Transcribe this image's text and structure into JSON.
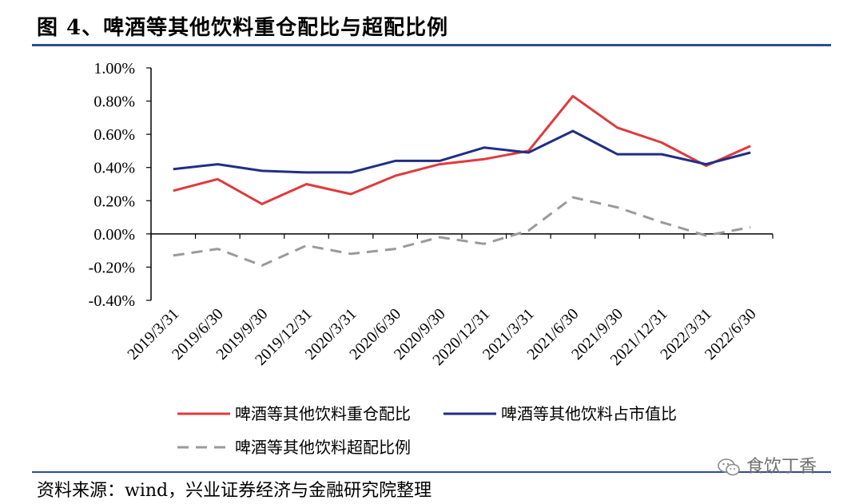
{
  "title": "图 4、啤酒等其他饮料重仓配比与超配比例",
  "source": "资料来源：wind，兴业证券经济与金融研究院整理",
  "watermark": {
    "text": "食饮丁香",
    "icon": "wechat-icon"
  },
  "colors": {
    "red": "#e03a3c",
    "blue": "#1f2f86",
    "gray": "#9a9a9a",
    "rule": "#2a4d8f"
  },
  "chart_data": {
    "type": "line",
    "categories": [
      "2019/3/31",
      "2019/6/30",
      "2019/9/30",
      "2019/12/31",
      "2020/3/31",
      "2020/6/30",
      "2020/9/30",
      "2020/12/31",
      "2021/3/31",
      "2021/6/30",
      "2021/9/30",
      "2021/12/31",
      "2022/3/31",
      "2022/6/30"
    ],
    "yticks": [
      "1.00%",
      "0.80%",
      "0.60%",
      "0.40%",
      "0.20%",
      "0.00%",
      "-0.20%",
      "-0.40%"
    ],
    "ylim": [
      -0.4,
      1.0
    ],
    "grid": false,
    "legend_position": "bottom",
    "series": [
      {
        "name": "啤酒等其他饮料重仓配比",
        "color": "#e03a3c",
        "dash": "solid",
        "values": [
          0.26,
          0.33,
          0.18,
          0.3,
          0.24,
          0.35,
          0.42,
          0.45,
          0.5,
          0.83,
          0.64,
          0.55,
          0.41,
          0.53
        ]
      },
      {
        "name": "啤酒等其他饮料占市值比",
        "color": "#1f2f86",
        "dash": "solid",
        "values": [
          0.39,
          0.42,
          0.38,
          0.37,
          0.37,
          0.44,
          0.44,
          0.52,
          0.49,
          0.62,
          0.48,
          0.48,
          0.42,
          0.49
        ]
      },
      {
        "name": "啤酒等其他饮料超配比例",
        "color": "#9a9a9a",
        "dash": "dashed",
        "values": [
          -0.13,
          -0.09,
          -0.19,
          -0.07,
          -0.12,
          -0.09,
          -0.02,
          -0.06,
          0.02,
          0.22,
          0.16,
          0.07,
          -0.01,
          0.04
        ]
      }
    ]
  }
}
